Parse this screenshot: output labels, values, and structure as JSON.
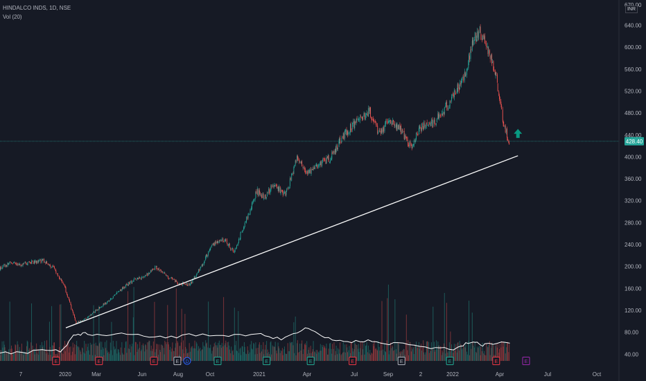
{
  "header": {
    "symbol_line": "HINDALCO INDS, 1D, NSE",
    "volume_line": "Vol (20)",
    "currency": "INR",
    "top_tick_partial": "670.00"
  },
  "colors": {
    "background": "#161a25",
    "up": "#26a69a",
    "down": "#ef5350",
    "trendline": "#ffffff",
    "volume_ma": "#ffffff",
    "price_line": "#26a69a",
    "arrow": "#089981",
    "earnings_red": "#f23645",
    "earnings_gray": "#b2b5be",
    "earnings_teal": "#22ab94",
    "earnings_purple": "#9c27b0",
    "dividend_blue": "#2962ff"
  },
  "chart_data": {
    "type": "line",
    "title": "HINDALCO INDS, 1D, NSE",
    "x_ticks": [
      "7",
      "2020",
      "Mar",
      "Jun",
      "Aug",
      "Oct",
      "2021",
      "Apr",
      "Jul",
      "Sep",
      "2",
      "2022",
      "Apr",
      "Jul",
      "Oct"
    ],
    "y_ticks": [
      "640.00",
      "600.00",
      "560.00",
      "520.00",
      "480.00",
      "440.00",
      "400.00",
      "360.00",
      "320.00",
      "280.00",
      "240.00",
      "200.00",
      "160.00",
      "120.00",
      "80.00",
      "40.00"
    ],
    "ylim": [
      40,
      670
    ],
    "last_price": 428.4,
    "last_price_label": "428.40",
    "series": [
      {
        "name": "HINDALCO INDS",
        "x": [
          "2019-11-01",
          "2019-11-20",
          "2019-12-10",
          "2019-12-31",
          "2020-01-20",
          "2020-02-10",
          "2020-02-28",
          "2020-03-20",
          "2020-04-10",
          "2020-05-01",
          "2020-05-25",
          "2020-06-15",
          "2020-07-05",
          "2020-07-25",
          "2020-08-15",
          "2020-09-05",
          "2020-09-25",
          "2020-10-15",
          "2020-11-05",
          "2020-11-25",
          "2020-12-15",
          "2021-01-05",
          "2021-01-28",
          "2021-02-15",
          "2021-03-01",
          "2021-03-20",
          "2021-04-10",
          "2021-04-30",
          "2021-05-20",
          "2021-06-10",
          "2021-07-01",
          "2021-07-20",
          "2021-08-05",
          "2021-08-25",
          "2021-09-10",
          "2021-09-28",
          "2021-10-15",
          "2021-11-05",
          "2021-11-25",
          "2021-12-15",
          "2022-01-05",
          "2022-01-25",
          "2022-02-15",
          "2022-03-05",
          "2022-03-20",
          "2022-04-01",
          "2022-04-15",
          "2022-05-01",
          "2022-05-15",
          "2022-05-26"
        ],
        "values": [
          196,
          206,
          203,
          208,
          211,
          195,
          165,
          96,
          107,
          124,
          142,
          162,
          176,
          182,
          199,
          181,
          170,
          166,
          200,
          240,
          251,
          227,
          287,
          337,
          326,
          350,
          330,
          398,
          371,
          387,
          397,
          432,
          452,
          468,
          486,
          442,
          465,
          452,
          418,
          455,
          462,
          485,
          515,
          550,
          610,
          632,
          598,
          552,
          458,
          428
        ]
      }
    ],
    "volume": {
      "name": "Vol (20)",
      "ma_x": [
        "2019-11-01",
        "2020-01-01",
        "2020-02-20",
        "2020-03-15",
        "2020-04-10",
        "2020-06-01",
        "2020-08-01",
        "2020-10-01",
        "2020-12-15",
        "2021-02-15",
        "2021-04-01",
        "2021-05-15",
        "2021-06-20",
        "2021-08-01",
        "2021-09-15",
        "2021-11-01",
        "2022-01-01",
        "2022-02-20",
        "2022-03-20",
        "2022-04-10",
        "2022-05-26"
      ],
      "ma_y": [
        44,
        44,
        46,
        72,
        78,
        74,
        73,
        72,
        76,
        74,
        68,
        85,
        72,
        60,
        65,
        58,
        52,
        50,
        64,
        56,
        62
      ]
    },
    "trendline": {
      "x": [
        "2020-03-01",
        "2022-06-10"
      ],
      "y": [
        88,
        402
      ]
    },
    "events": [
      {
        "date": "2020-02-12",
        "label": "E",
        "kind": "earnings_red"
      },
      {
        "date": "2020-05-01",
        "label": "E",
        "kind": "earnings_red"
      },
      {
        "date": "2020-08-10",
        "label": "E",
        "kind": "earnings_red"
      },
      {
        "date": "2020-09-22",
        "label": "E",
        "kind": "earnings_gray"
      },
      {
        "date": "2020-10-10",
        "label": "D",
        "kind": "dividend_blue"
      },
      {
        "date": "2020-12-05",
        "label": "E",
        "kind": "earnings_teal"
      },
      {
        "date": "2021-03-05",
        "label": "E",
        "kind": "earnings_teal"
      },
      {
        "date": "2021-05-25",
        "label": "E",
        "kind": "earnings_teal"
      },
      {
        "date": "2021-08-10",
        "label": "E",
        "kind": "earnings_red"
      },
      {
        "date": "2021-11-08",
        "label": "E",
        "kind": "earnings_gray"
      },
      {
        "date": "2022-02-05",
        "label": "E",
        "kind": "earnings_teal"
      },
      {
        "date": "2022-05-01",
        "label": "E",
        "kind": "earnings_red"
      },
      {
        "date": "2022-06-25",
        "label": "E",
        "kind": "earnings_purple"
      }
    ]
  }
}
